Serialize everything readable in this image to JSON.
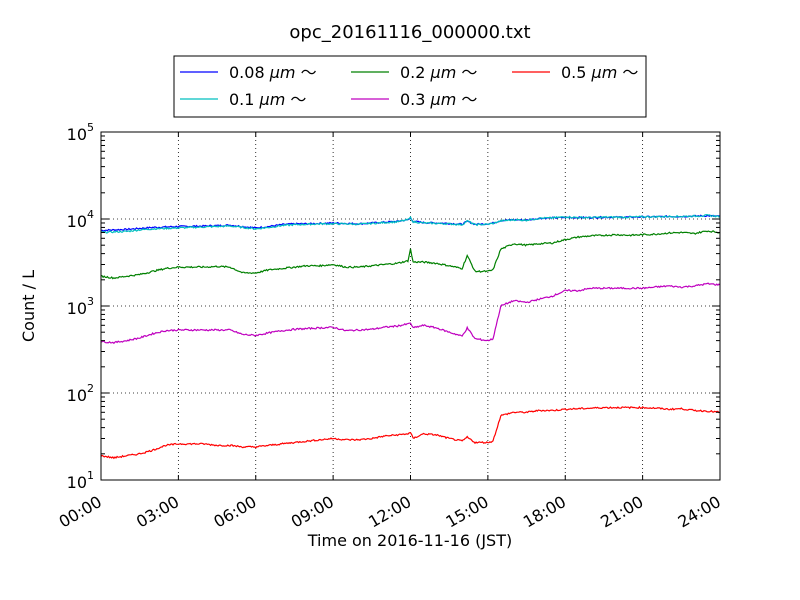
{
  "chart_data": {
    "type": "line",
    "title": "opc_20161116_000000.txt",
    "xlabel": "Time on 2016-11-16 (JST)",
    "ylabel": "Count / L",
    "yscale": "log",
    "ylim": [
      10,
      100000
    ],
    "xlim": [
      "00:00",
      "24:00"
    ],
    "x_ticks": [
      "00:00",
      "03:00",
      "06:00",
      "09:00",
      "12:00",
      "15:00",
      "18:00",
      "21:00",
      "24:00"
    ],
    "y_ticks": [
      {
        "value": 10,
        "base": "10",
        "exp": "1"
      },
      {
        "value": 100,
        "base": "10",
        "exp": "2"
      },
      {
        "value": 1000,
        "base": "10",
        "exp": "3"
      },
      {
        "value": 10000,
        "base": "10",
        "exp": "4"
      },
      {
        "value": 100000,
        "base": "10",
        "exp": "5"
      }
    ],
    "grid": true,
    "legend_position": "top",
    "x_hours": [
      0,
      0.5,
      1,
      1.5,
      2,
      2.5,
      3,
      3.5,
      4,
      4.5,
      5,
      5.5,
      6,
      6.5,
      7,
      7.5,
      8,
      8.5,
      9,
      9.5,
      10,
      10.5,
      11,
      11.5,
      11.9,
      12,
      12.1,
      12.5,
      13,
      13.5,
      14,
      14.2,
      14.5,
      15,
      15.2,
      15.5,
      16,
      16.5,
      17,
      17.5,
      18,
      18.5,
      19,
      19.5,
      20,
      20.5,
      21,
      21.5,
      22,
      22.5,
      23,
      23.5,
      24
    ],
    "series": [
      {
        "name": "0.08 μm ～",
        "label_main": "0.08 ",
        "label_unit": "μm",
        "label_tail": " ～",
        "color": "#0000ff",
        "values": [
          7400,
          7500,
          7600,
          7800,
          8000,
          8100,
          8200,
          8250,
          8300,
          8400,
          8500,
          8200,
          7900,
          8200,
          8600,
          8800,
          8800,
          8900,
          9000,
          8900,
          8800,
          9000,
          9200,
          9400,
          9800,
          10200,
          9400,
          9100,
          9000,
          8900,
          8700,
          9400,
          8700,
          8800,
          9000,
          9600,
          9800,
          9700,
          10200,
          10300,
          10400,
          10400,
          10400,
          10500,
          10500,
          10500,
          10600,
          10600,
          10700,
          10700,
          10800,
          10900,
          10700
        ]
      },
      {
        "name": "0.1 μm ～",
        "label_main": "0.1 ",
        "label_unit": "μm",
        "label_tail": " ～",
        "color": "#00bfbf",
        "values": [
          7000,
          7100,
          7200,
          7500,
          7700,
          7800,
          7900,
          8000,
          8100,
          8200,
          8300,
          8000,
          7700,
          8000,
          8400,
          8600,
          8700,
          8800,
          8800,
          8800,
          8700,
          8900,
          9100,
          9300,
          9800,
          10400,
          9300,
          9000,
          8900,
          8800,
          8600,
          9500,
          8600,
          8700,
          8900,
          9500,
          9800,
          9700,
          10200,
          10300,
          10600,
          10400,
          10400,
          10500,
          10500,
          10500,
          10600,
          10600,
          10700,
          10700,
          10800,
          11000,
          10700
        ]
      },
      {
        "name": "0.2 μm ～",
        "label_main": "0.2 ",
        "label_unit": "μm",
        "label_tail": " ～",
        "color": "#008000",
        "values": [
          2200,
          2100,
          2200,
          2300,
          2500,
          2700,
          2800,
          2800,
          2800,
          2850,
          2800,
          2400,
          2400,
          2600,
          2700,
          2800,
          2900,
          2900,
          3000,
          2800,
          2800,
          2900,
          3000,
          3100,
          3300,
          4500,
          3200,
          3200,
          3100,
          2900,
          2700,
          3800,
          2500,
          2500,
          2600,
          4500,
          5200,
          5000,
          5200,
          5300,
          5800,
          6200,
          6400,
          6500,
          6600,
          6500,
          6600,
          6700,
          6900,
          7000,
          6800,
          7300,
          7000
        ]
      },
      {
        "name": "0.3 μm ～",
        "label_main": "0.3 ",
        "label_unit": "μm",
        "label_tail": " ～",
        "color": "#bf00bf",
        "values": [
          390,
          380,
          400,
          430,
          480,
          520,
          530,
          530,
          530,
          530,
          530,
          470,
          460,
          490,
          520,
          540,
          550,
          560,
          570,
          520,
          530,
          540,
          570,
          590,
          620,
          640,
          560,
          600,
          560,
          500,
          450,
          560,
          420,
          400,
          420,
          1000,
          1150,
          1100,
          1200,
          1300,
          1500,
          1500,
          1600,
          1600,
          1600,
          1600,
          1600,
          1650,
          1700,
          1650,
          1700,
          1800,
          1750
        ]
      },
      {
        "name": "0.5 μm ～",
        "label_main": "0.5 ",
        "label_unit": "μm",
        "label_tail": " ～",
        "color": "#ff0000",
        "values": [
          19,
          18,
          19,
          20,
          22,
          25,
          26,
          26,
          26,
          25,
          25,
          24,
          24,
          25,
          26,
          27,
          28,
          29,
          30,
          29,
          29,
          30,
          32,
          33,
          34,
          35,
          30,
          34,
          33,
          30,
          28,
          31,
          27,
          27,
          28,
          55,
          60,
          60,
          63,
          63,
          65,
          66,
          67,
          68,
          68,
          68,
          68,
          67,
          65,
          66,
          63,
          62,
          60
        ]
      }
    ]
  }
}
